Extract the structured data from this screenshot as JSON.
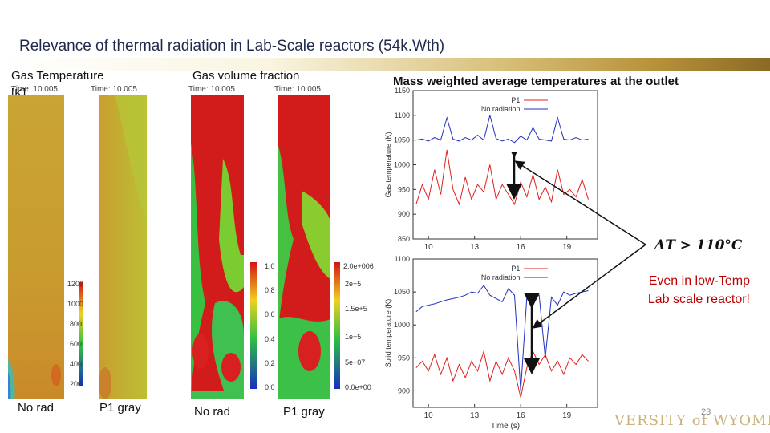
{
  "slide": {
    "title": "Relevance of thermal radiation in Lab-Scale reactors (54k.Wth)",
    "page_number": "23",
    "logo_text": "VERSITY of WYOMING",
    "note_line1": "Even in low-Temp",
    "note_line2": "Lab scale reactor!",
    "delta_t": "ΔT > 110°C"
  },
  "temperature": {
    "header_line1": "Gas Temperature",
    "header_line2": "[K]",
    "time_label": "Time: 10.005",
    "colorbar_ticks": [
      "1200",
      "1000",
      "800",
      "600",
      "400",
      "200"
    ],
    "caption_left": "No rad",
    "caption_right": "P1 gray"
  },
  "volume_fraction": {
    "header": "Gas volume fraction",
    "time_label": "Time: 10.005",
    "colorbar_ticks": [
      "1.0",
      "0.8",
      "0.6",
      "0.4",
      "0.2",
      "0.0"
    ],
    "colorbar2_ticks": [
      "2.0e+006",
      "2e+5",
      "1.5e+5",
      "1e+5",
      "5e+07",
      "0.0e+00"
    ],
    "caption_left": "No rad",
    "caption_right": "P1 gray"
  },
  "outlet_title": "Mass weighted average temperatures at the outlet",
  "chart_data": [
    {
      "type": "line",
      "title": "",
      "xlabel": "",
      "ylabel": "Gas temperature (K)",
      "xlim": [
        9,
        21
      ],
      "ylim": [
        850,
        1150
      ],
      "xticks": [
        "10",
        "13",
        "16",
        "19"
      ],
      "yticks": [
        "850",
        "900",
        "950",
        "1000",
        "1050",
        "1100",
        "1150"
      ],
      "legend": [
        "P1",
        "No radiation"
      ],
      "series": [
        {
          "name": "P1",
          "color": "#e02020",
          "x": [
            9.2,
            9.6,
            10,
            10.4,
            10.8,
            11.2,
            11.6,
            12,
            12.4,
            12.8,
            13.2,
            13.6,
            14,
            14.4,
            14.8,
            15.2,
            15.6,
            16,
            16.4,
            16.8,
            17.2,
            17.6,
            18,
            18.4,
            18.8,
            19.2,
            19.6,
            20,
            20.4
          ],
          "y": [
            920,
            960,
            930,
            990,
            940,
            1030,
            950,
            920,
            975,
            930,
            960,
            945,
            1000,
            930,
            960,
            940,
            920,
            965,
            935,
            980,
            930,
            955,
            925,
            990,
            940,
            950,
            935,
            970,
            930
          ]
        },
        {
          "name": "No radiation",
          "color": "#2030c0",
          "x": [
            9.2,
            9.6,
            10,
            10.4,
            10.8,
            11.2,
            11.6,
            12,
            12.4,
            12.8,
            13.2,
            13.6,
            14,
            14.4,
            14.8,
            15.2,
            15.6,
            16,
            16.4,
            16.8,
            17.2,
            17.6,
            18,
            18.4,
            18.8,
            19.2,
            19.6,
            20,
            20.4
          ],
          "y": [
            1050,
            1052,
            1048,
            1055,
            1050,
            1095,
            1052,
            1048,
            1055,
            1050,
            1060,
            1050,
            1100,
            1053,
            1048,
            1052,
            1045,
            1058,
            1050,
            1075,
            1052,
            1050,
            1048,
            1095,
            1052,
            1050,
            1055,
            1050,
            1052
          ]
        }
      ]
    },
    {
      "type": "line",
      "title": "",
      "xlabel": "Time (s)",
      "ylabel": "Solid temperature (K)",
      "xlim": [
        9,
        21
      ],
      "ylim": [
        875,
        1100
      ],
      "xticks": [
        "10",
        "13",
        "16",
        "19"
      ],
      "yticks": [
        "900",
        "950",
        "1000",
        "1050",
        "1100"
      ],
      "legend": [
        "P1",
        "No radiation"
      ],
      "series": [
        {
          "name": "P1",
          "color": "#e02020",
          "x": [
            9.2,
            9.6,
            10,
            10.4,
            10.8,
            11.2,
            11.6,
            12,
            12.4,
            12.8,
            13.2,
            13.6,
            14,
            14.4,
            14.8,
            15.2,
            15.6,
            16,
            16.4,
            16.8,
            17.2,
            17.6,
            18,
            18.4,
            18.8,
            19.2,
            19.6,
            20,
            20.4
          ],
          "y": [
            935,
            945,
            930,
            955,
            925,
            950,
            915,
            940,
            920,
            945,
            930,
            960,
            915,
            945,
            925,
            950,
            930,
            890,
            935,
            960,
            940,
            955,
            930,
            945,
            925,
            950,
            940,
            955,
            945
          ]
        },
        {
          "name": "No radiation",
          "color": "#2030c0",
          "x": [
            9.2,
            9.6,
            10,
            10.4,
            10.8,
            11.2,
            11.6,
            12,
            12.4,
            12.8,
            13.2,
            13.6,
            14,
            14.4,
            14.8,
            15.2,
            15.6,
            16,
            16.4,
            16.8,
            17.2,
            17.6,
            18,
            18.4,
            18.8,
            19.2,
            19.6,
            20,
            20.4
          ],
          "y": [
            1020,
            1028,
            1030,
            1032,
            1035,
            1038,
            1040,
            1042,
            1045,
            1050,
            1048,
            1060,
            1045,
            1040,
            1035,
            1055,
            1045,
            900,
            1042,
            1040,
            1045,
            950,
            1042,
            1030,
            1050,
            1045,
            1048,
            1050,
            1052
          ]
        }
      ]
    }
  ]
}
